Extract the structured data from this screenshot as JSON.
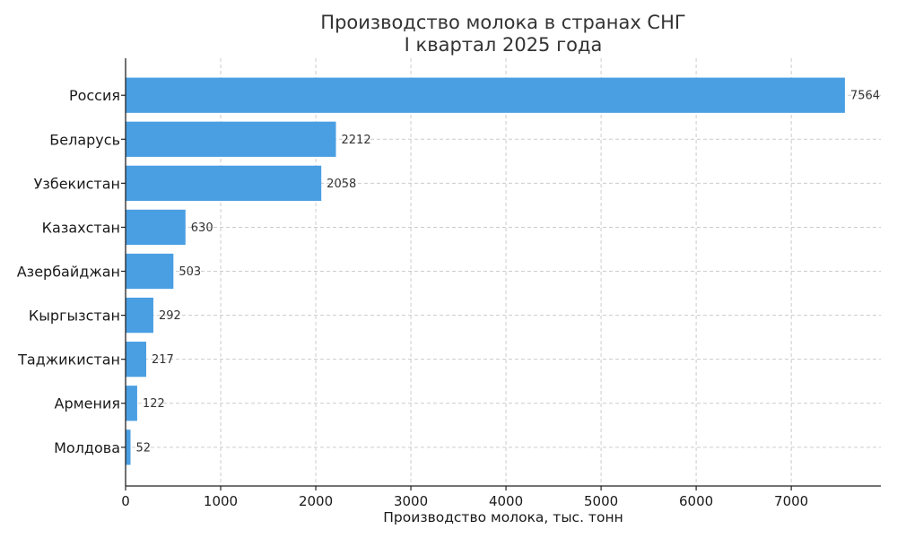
{
  "chart_data": {
    "type": "bar",
    "orientation": "horizontal",
    "title_lines": [
      "Производство молока в странах СНГ",
      "I квартал 2025 года"
    ],
    "xlabel": "Производство молока, тыс. тонн",
    "ylabel": "",
    "categories": [
      "Россия",
      "Беларусь",
      "Узбекистан",
      "Казахстан",
      "Азербайджан",
      "Кыргызстан",
      "Таджикистан",
      "Армения",
      "Молдова"
    ],
    "values": [
      7564,
      2212,
      2058,
      630,
      503,
      292,
      217,
      122,
      52
    ],
    "value_labels": [
      "7564",
      "2212",
      "2058",
      "630",
      "503",
      "292",
      "217",
      "122",
      "52"
    ],
    "xlim": [
      0,
      7942
    ],
    "xticks": [
      0,
      1000,
      2000,
      3000,
      4000,
      5000,
      6000,
      7000
    ],
    "xtick_labels": [
      "0",
      "1000",
      "2000",
      "3000",
      "4000",
      "5000",
      "6000",
      "7000"
    ],
    "grid": true,
    "bar_color": "#4a9fe3"
  }
}
